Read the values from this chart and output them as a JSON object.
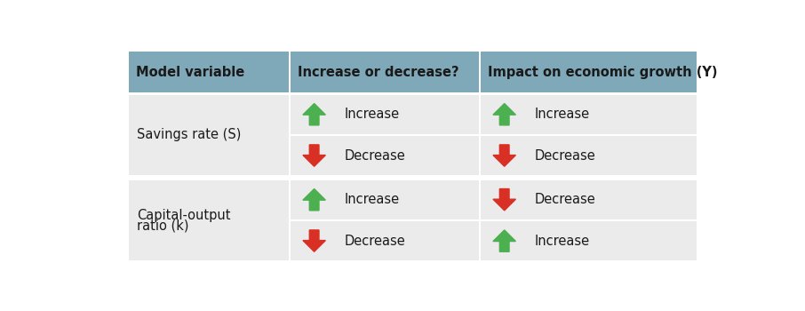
{
  "header_bg": "#7fa8b8",
  "cell_bg": "#ebebeb",
  "outer_bg": "#ffffff",
  "header_text_color": "#1a1a1a",
  "cell_text_color": "#1a1a1a",
  "green_arrow": "#4caf50",
  "red_arrow": "#d93025",
  "header_font_size": 10.5,
  "cell_font_size": 10.5,
  "headers": [
    "Model variable",
    "Increase or decrease?",
    "Impact on economic growth (Y)"
  ],
  "group_labels": [
    [
      "Savings rate (S)"
    ],
    [
      "Capital-output",
      "ratio (k)"
    ]
  ],
  "rows": [
    [
      {
        "arrow": "up",
        "color": "green",
        "text": "Increase"
      },
      {
        "arrow": "up",
        "color": "green",
        "text": "Increase"
      }
    ],
    [
      {
        "arrow": "down",
        "color": "red",
        "text": "Decrease"
      },
      {
        "arrow": "down",
        "color": "red",
        "text": "Decrease"
      }
    ],
    [
      {
        "arrow": "up",
        "color": "green",
        "text": "Increase"
      },
      {
        "arrow": "down",
        "color": "red",
        "text": "Decrease"
      }
    ],
    [
      {
        "arrow": "down",
        "color": "red",
        "text": "Decrease"
      },
      {
        "arrow": "up",
        "color": "green",
        "text": "Increase"
      }
    ]
  ]
}
